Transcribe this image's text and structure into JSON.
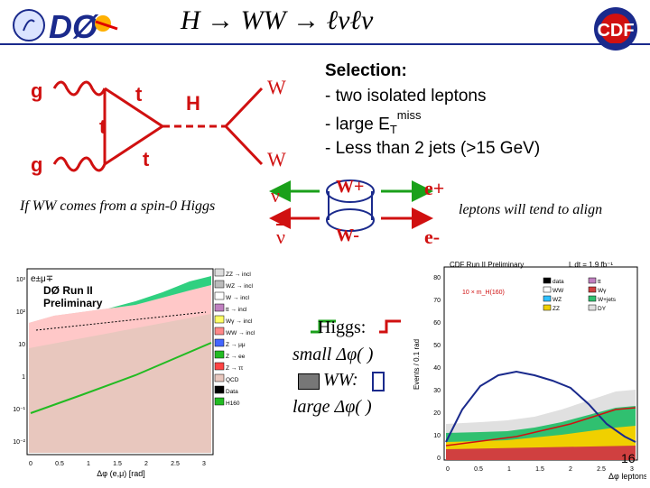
{
  "header": {
    "title": "H → WW → ℓνℓν",
    "left_logo": "DØ",
    "right_logo": "CDF"
  },
  "diagram": {
    "gluon_label": "g",
    "top_quark_label": "t",
    "higgs_label": "H",
    "w_label": "W"
  },
  "selection": {
    "heading": "Selection:",
    "items": [
      "- two isolated leptons",
      "- large E",
      "- Less than 2 jets (>15 GeV)"
    ],
    "et_sub": "T",
    "et_sup": "miss"
  },
  "spin": {
    "note_left": "If WW comes from a spin-0 Higgs",
    "note_right": "leptons will tend to align",
    "nu": "ν",
    "nubar": "ν",
    "w_plus": "W+",
    "w_minus": "W-",
    "e_plus": "e+",
    "e_minus": "e-"
  },
  "legend": {
    "higgs_label": "Higgs:",
    "small": "small Δφ(  )",
    "ww_label": "WW:",
    "large": "large Δφ(  )"
  },
  "left_plot": {
    "title_line1": "DØ Run II",
    "title_line2": "Preliminary",
    "channel": "e±μ∓",
    "legend_items": [
      "ZZ → incl",
      "WZ → incl",
      "W → incl",
      "tt → incl",
      "Wγ → incl",
      "WW → incl",
      "Z → μμ",
      "Z → ee",
      "Z → ττ",
      "QCD",
      "Data",
      "H160"
    ],
    "xaxis_label": "Δφ (e,μ) [rad]",
    "x_ticks": [
      "0",
      "0.5",
      "1",
      "1.5",
      "2",
      "2.5",
      "3"
    ],
    "y_ticks": [
      "10³",
      "10²",
      "10",
      "1",
      "10⁻¹",
      "10⁻²"
    ]
  },
  "right_plot": {
    "title": "CDF Run II Preliminary",
    "lumi": "L dt = 1.9 fb⁻¹",
    "ylabel": "Events / 0.1 rad",
    "xlabel": "Δφ leptons",
    "x_ticks": [
      "0",
      "0.5",
      "1",
      "1.5",
      "2",
      "2.5",
      "3"
    ],
    "y_ticks": [
      "0",
      "10",
      "20",
      "30",
      "40",
      "50",
      "60",
      "70",
      "80"
    ],
    "higgs_legend": "10 × m_H(160)",
    "legend_items": [
      "data",
      "tt",
      "WW",
      "Wγ",
      "WZ",
      "W+jets",
      "ZZ",
      "DY"
    ]
  },
  "footer": {
    "page_number": "16"
  }
}
